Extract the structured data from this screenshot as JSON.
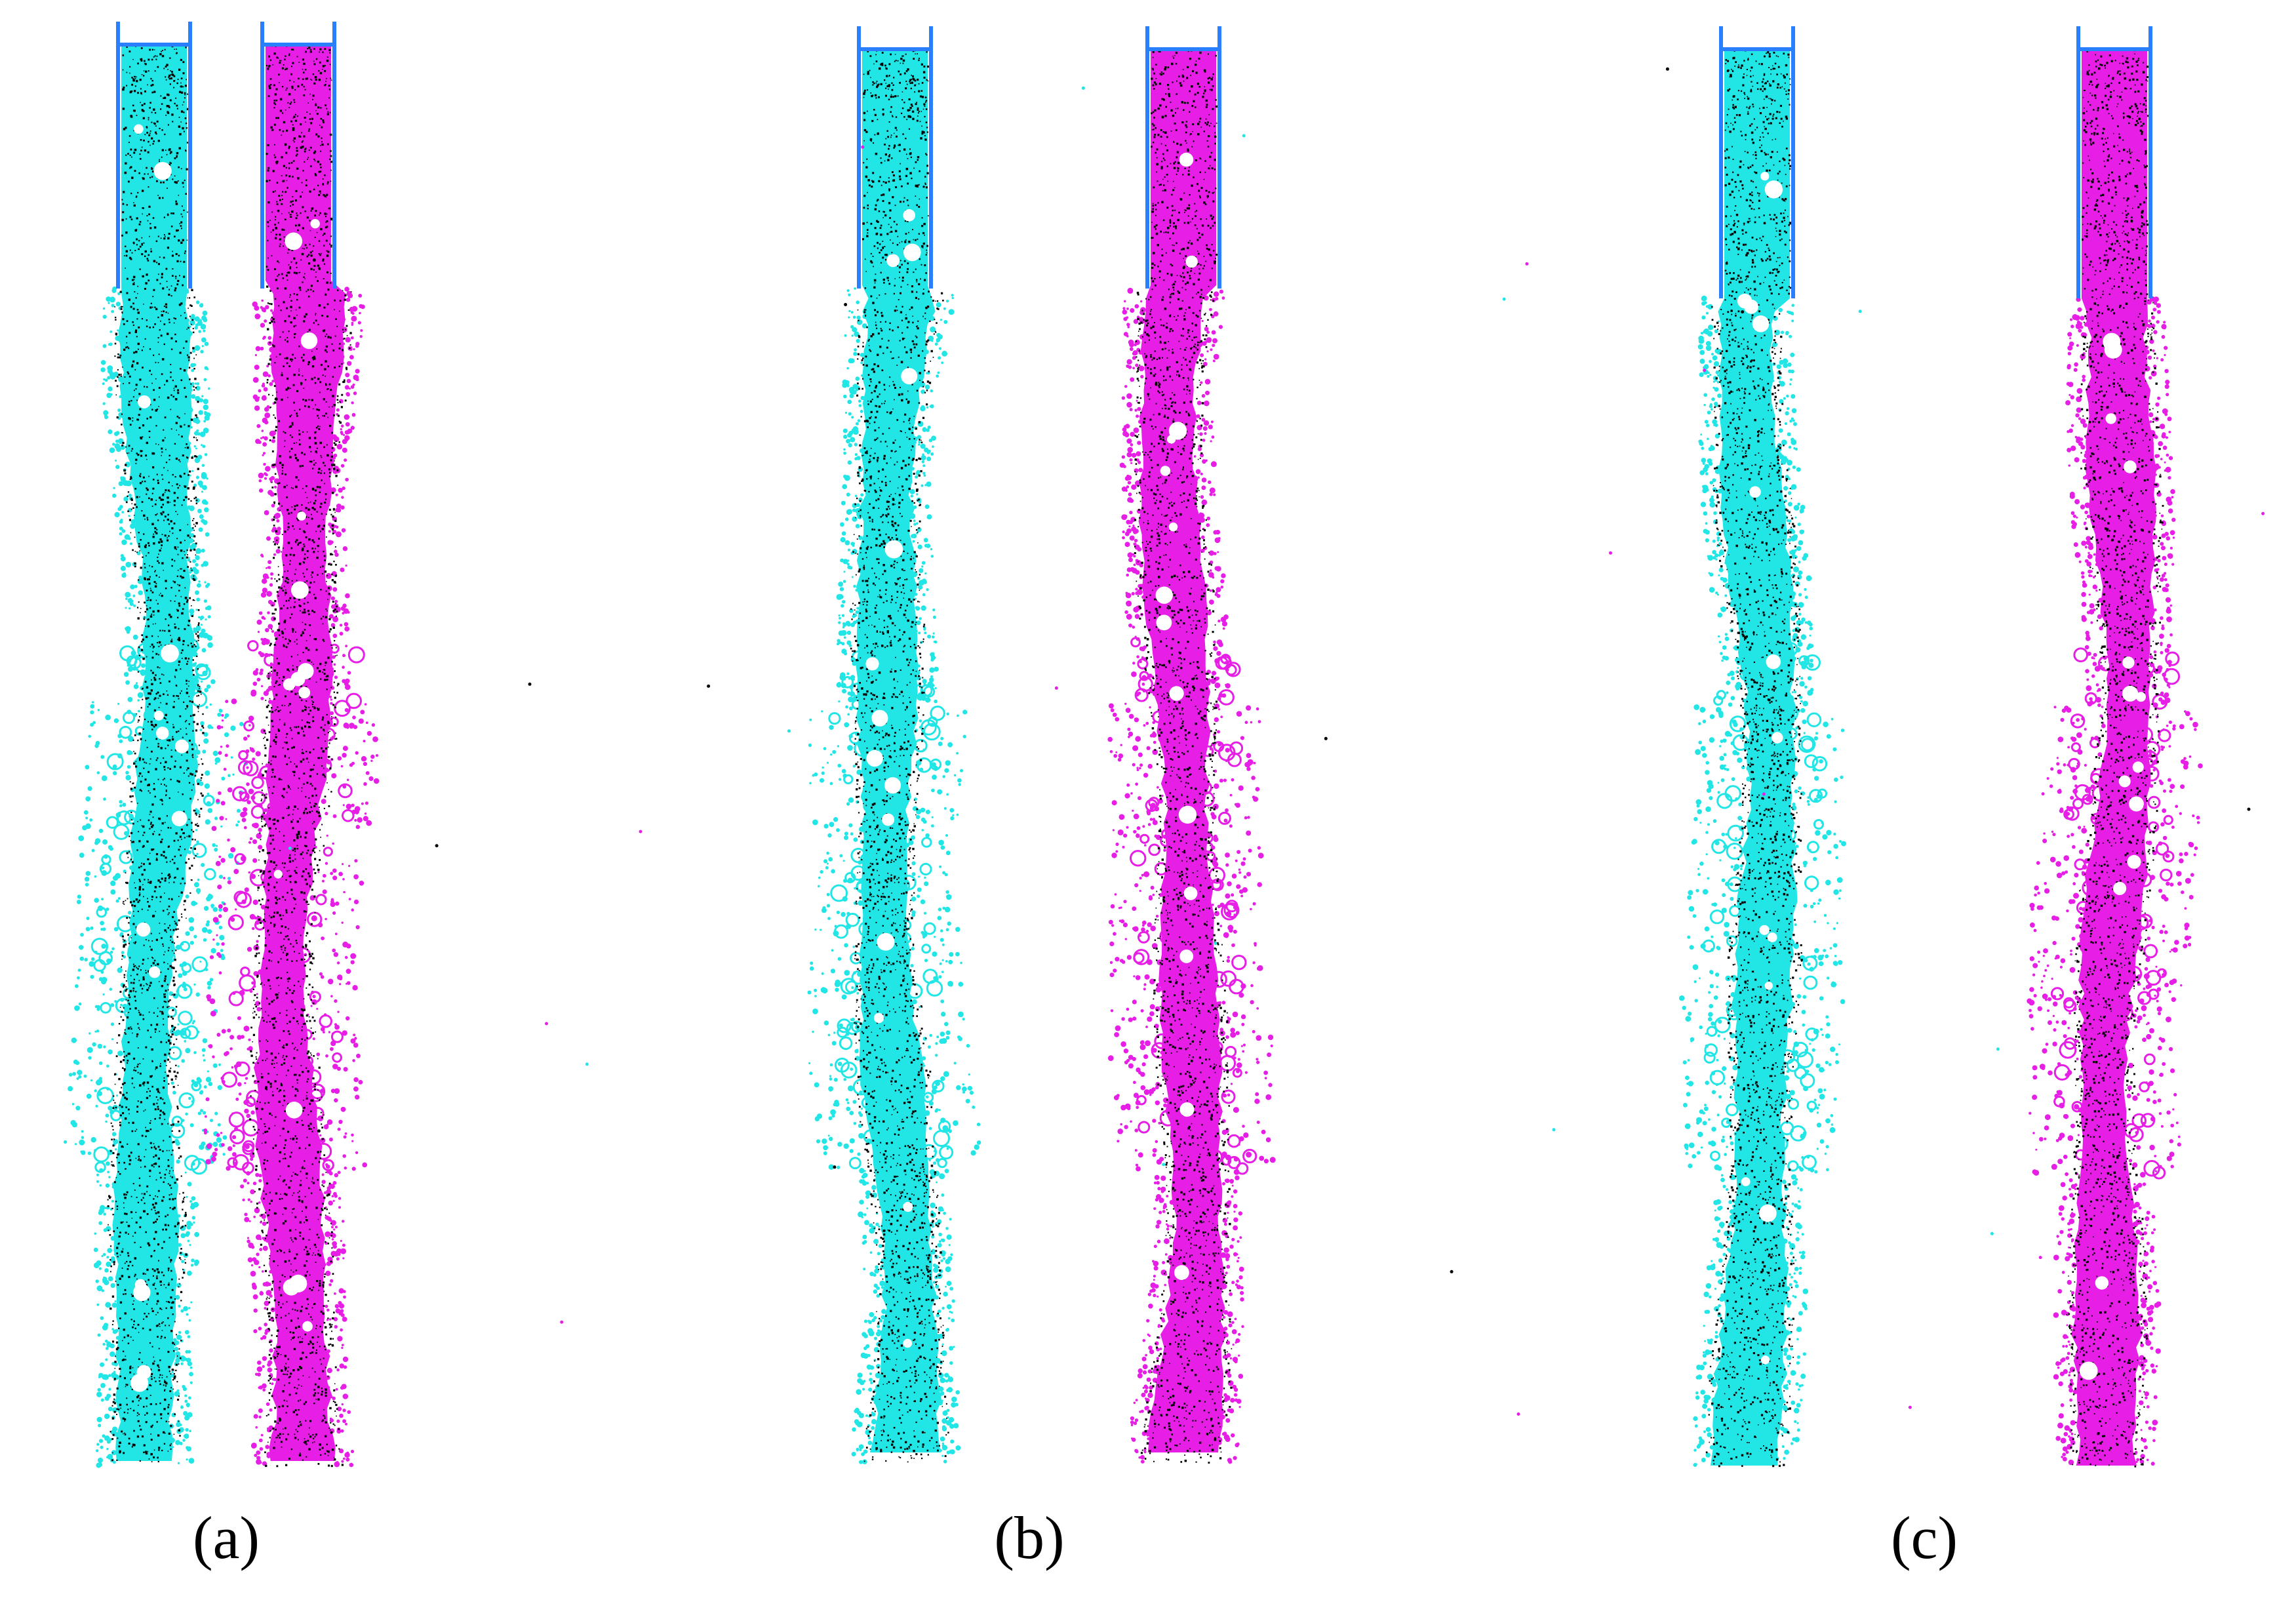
{
  "figure": {
    "colors": {
      "cyan": "#22e6e6",
      "magenta": "#e61ee6",
      "bracket": "#2a7fff",
      "speckle": "#000000",
      "background": "#ffffff"
    },
    "panels": [
      {
        "label": "(a)",
        "columns": [
          {
            "color_key": "cyan",
            "stream_shape": "narrowing"
          },
          {
            "color_key": "magenta",
            "stream_shape": "narrowing"
          }
        ]
      },
      {
        "label": "(b)",
        "columns": [
          {
            "color_key": "cyan",
            "stream_shape": "narrowing"
          },
          {
            "color_key": "magenta",
            "stream_shape": "narrowing"
          }
        ]
      },
      {
        "label": "(c)",
        "columns": [
          {
            "color_key": "cyan",
            "stream_shape": "narrowing"
          },
          {
            "color_key": "magenta",
            "stream_shape": "narrowing"
          }
        ]
      }
    ]
  }
}
